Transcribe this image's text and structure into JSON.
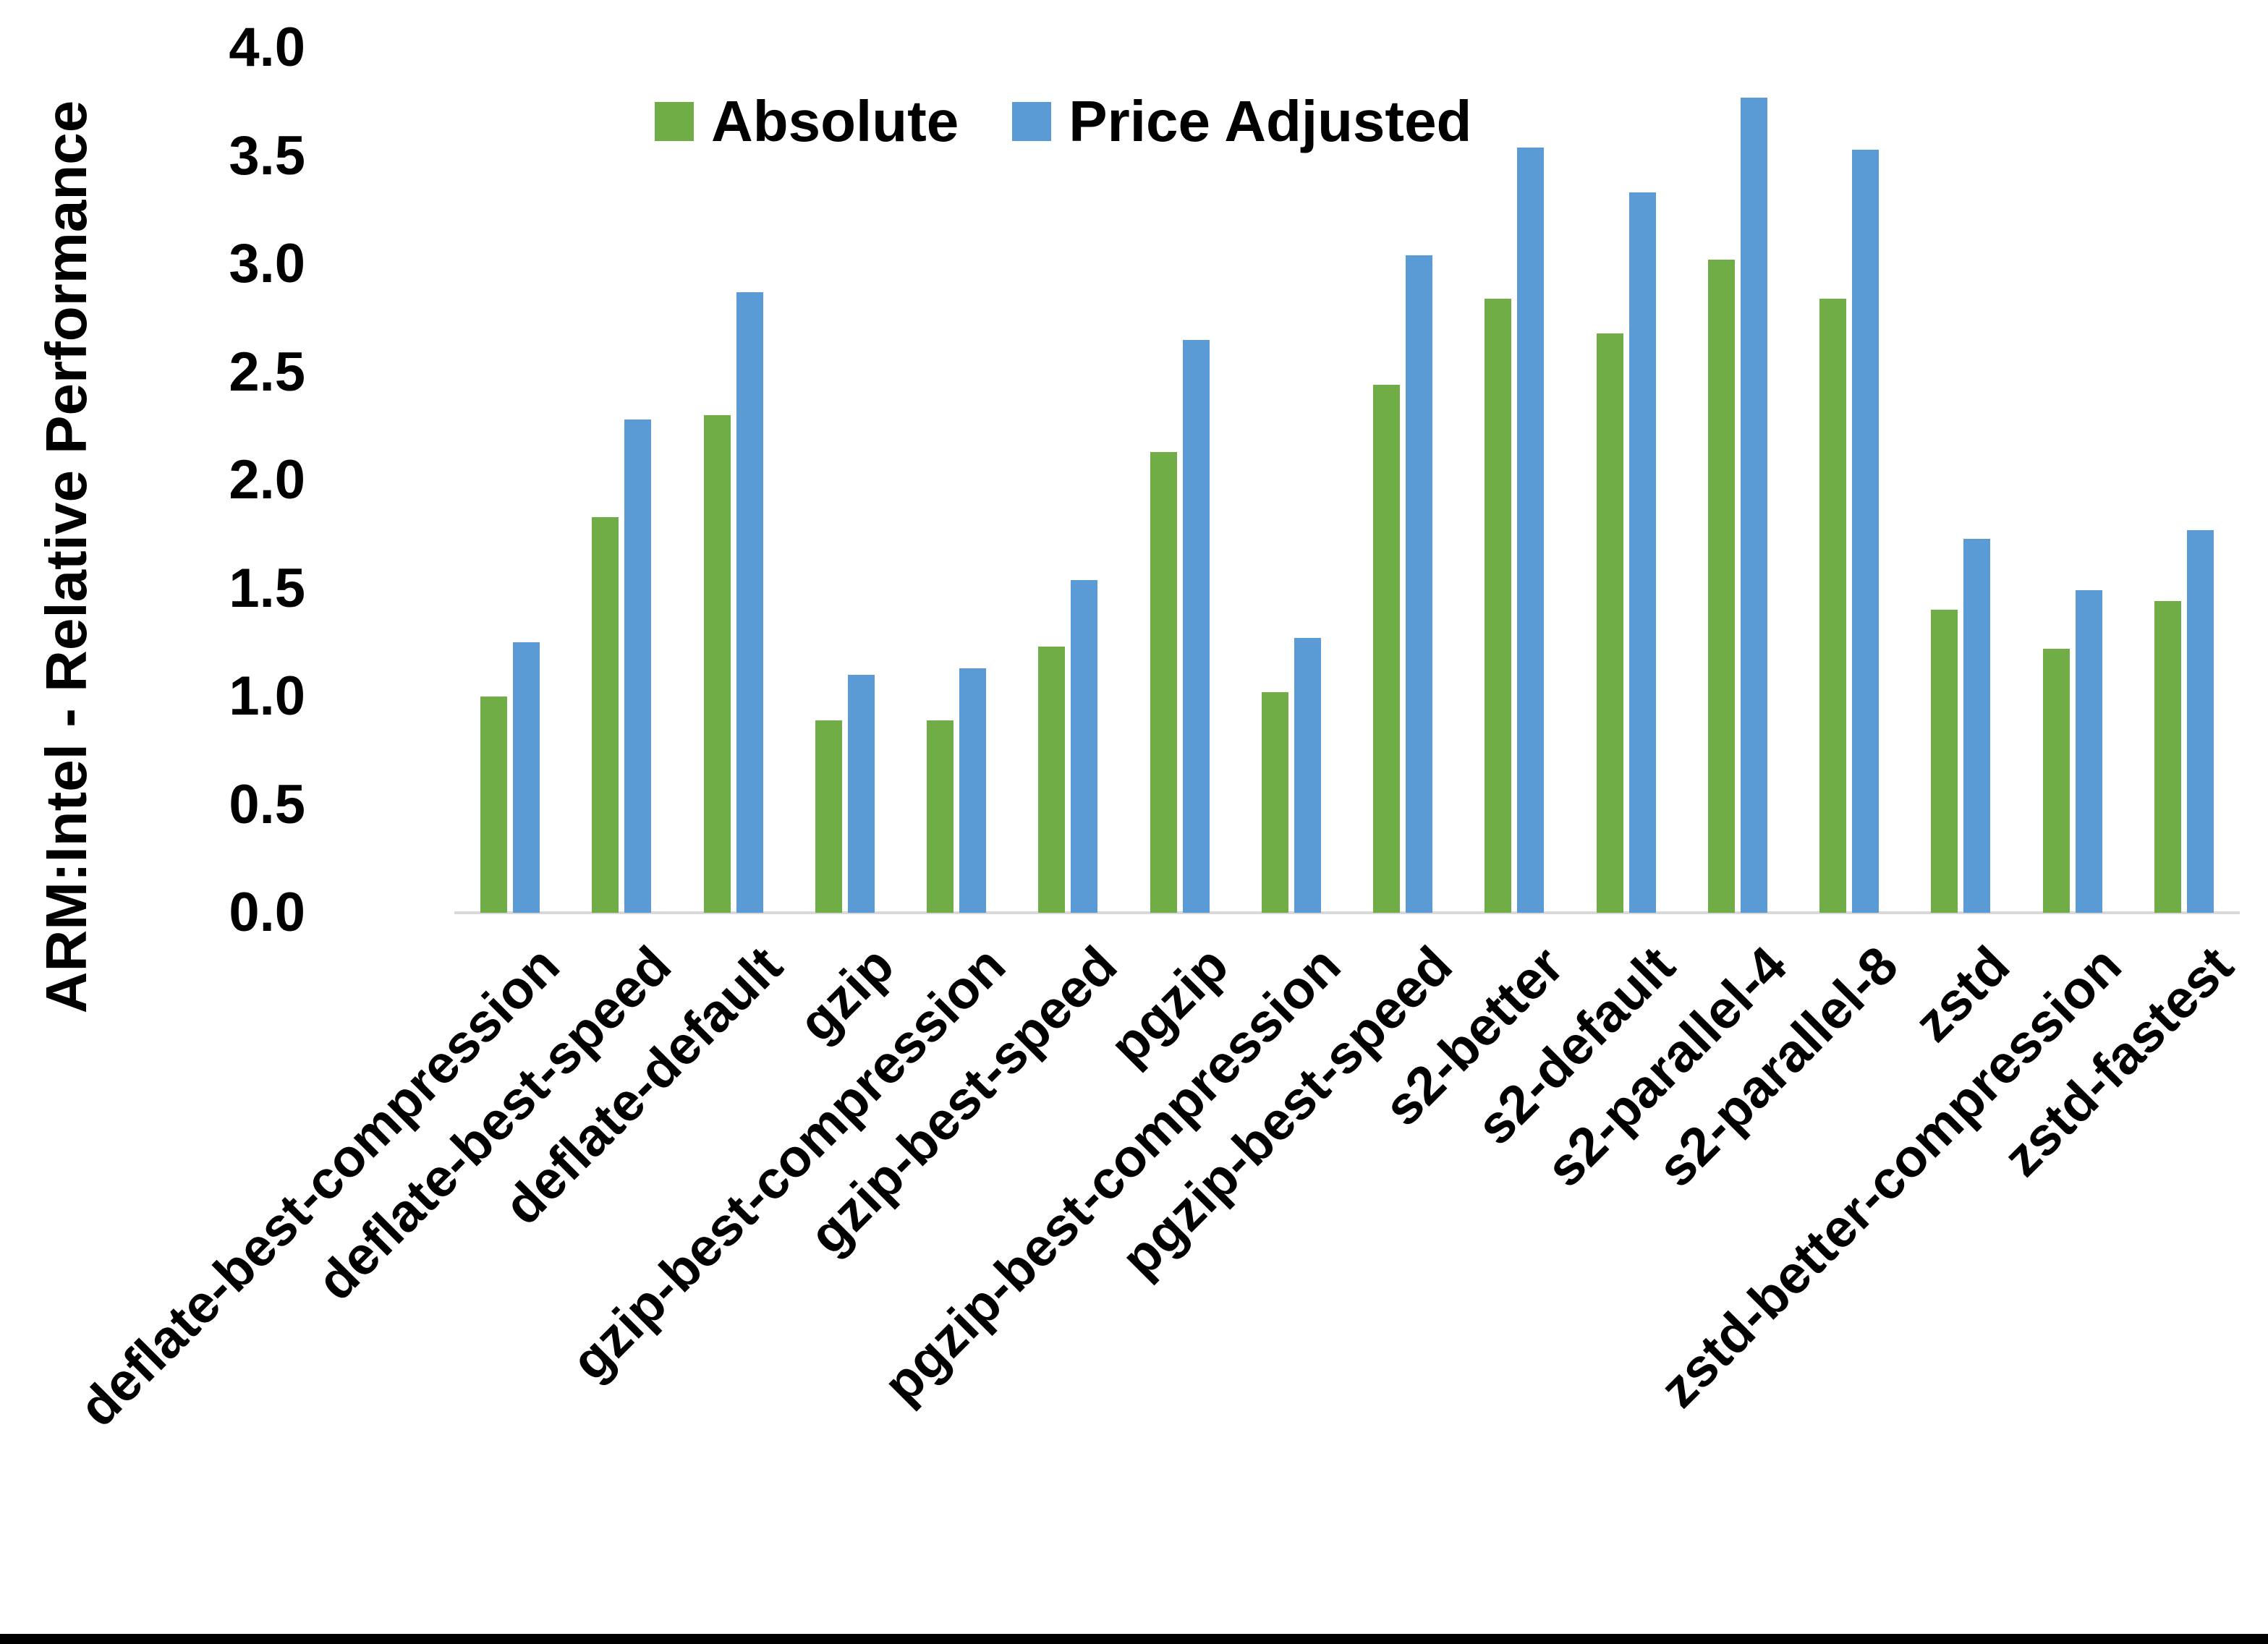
{
  "chart_data": {
    "type": "bar",
    "title": "",
    "xlabel": "",
    "ylabel": "ARM:Intel - Relative Performance",
    "ylim": [
      0.0,
      4.0
    ],
    "ytick_step": 0.5,
    "ytick_labels": [
      "0.0",
      "0.5",
      "1.0",
      "1.5",
      "2.0",
      "2.5",
      "3.0",
      "3.5",
      "4.0"
    ],
    "grid": false,
    "legend_position": "top-center",
    "categories": [
      "deflate-best-compression",
      "deflate-best-speed",
      "deflate-default",
      "gzip",
      "gzip-best-compression",
      "gzip-best-speed",
      "pgzip",
      "pgzip-best-compression",
      "pgzip-best-speed",
      "s2-better",
      "s2-default",
      "s2-parallel-4",
      "s2-parallel-8",
      "zstd",
      "zstd-better-compression",
      "zstd-fastest"
    ],
    "series": [
      {
        "name": "Absolute",
        "color": "#70AD47",
        "values": [
          1.0,
          1.83,
          2.3,
          0.89,
          0.89,
          1.23,
          2.13,
          1.02,
          2.44,
          2.84,
          2.68,
          3.02,
          2.84,
          1.4,
          1.22,
          1.44
        ]
      },
      {
        "name": "Price Adjusted",
        "color": "#5B9BD5",
        "values": [
          1.25,
          2.28,
          2.87,
          1.1,
          1.13,
          1.54,
          2.65,
          1.27,
          3.04,
          3.54,
          3.33,
          3.77,
          3.53,
          1.73,
          1.49,
          1.77
        ]
      }
    ]
  },
  "colors": {
    "background": "#ffffff",
    "axis_line": "#d9d9d9",
    "text": "#000000",
    "bottom_border": "#000000"
  }
}
